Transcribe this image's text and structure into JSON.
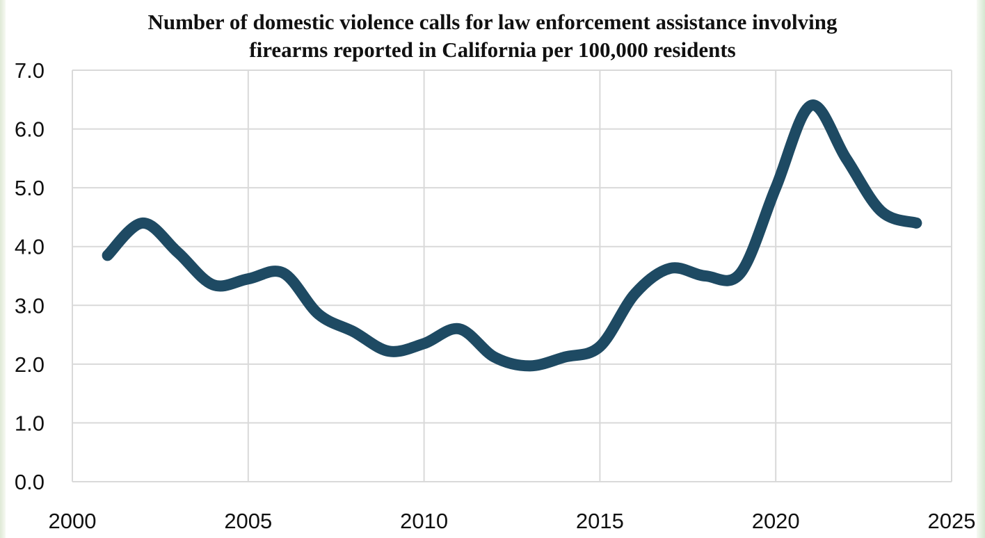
{
  "chart_data": {
    "type": "line",
    "title_lines": [
      "Number of domestic violence calls for law enforcement assistance involving",
      "firearms reported in California per 100,000 residents"
    ],
    "xlabel": "",
    "ylabel": "",
    "xlim": [
      2000,
      2025
    ],
    "ylim": [
      0,
      7
    ],
    "x_ticks": [
      2000,
      2005,
      2010,
      2015,
      2020,
      2025
    ],
    "x_tick_labels": [
      "2000",
      "2005",
      "2010",
      "2015",
      "2020",
      "2025"
    ],
    "y_ticks": [
      0,
      1,
      2,
      3,
      4,
      5,
      6,
      7
    ],
    "y_tick_labels": [
      "0.0",
      "1.0",
      "2.0",
      "3.0",
      "4.0",
      "5.0",
      "6.0",
      "7.0"
    ],
    "grid": "both",
    "legend": "none",
    "series": [
      {
        "color": "#1e4a63",
        "smooth": true,
        "points": [
          {
            "x": 2001,
            "y": 3.85
          },
          {
            "x": 2002,
            "y": 4.4
          },
          {
            "x": 2003,
            "y": 3.9
          },
          {
            "x": 2004,
            "y": 3.35
          },
          {
            "x": 2005,
            "y": 3.45
          },
          {
            "x": 2006,
            "y": 3.55
          },
          {
            "x": 2007,
            "y": 2.85
          },
          {
            "x": 2008,
            "y": 2.55
          },
          {
            "x": 2009,
            "y": 2.22
          },
          {
            "x": 2010,
            "y": 2.35
          },
          {
            "x": 2011,
            "y": 2.6
          },
          {
            "x": 2012,
            "y": 2.12
          },
          {
            "x": 2013,
            "y": 1.97
          },
          {
            "x": 2014,
            "y": 2.12
          },
          {
            "x": 2015,
            "y": 2.3
          },
          {
            "x": 2016,
            "y": 3.2
          },
          {
            "x": 2017,
            "y": 3.63
          },
          {
            "x": 2018,
            "y": 3.5
          },
          {
            "x": 2019,
            "y": 3.55
          },
          {
            "x": 2020,
            "y": 5.0
          },
          {
            "x": 2021,
            "y": 6.4
          },
          {
            "x": 2022,
            "y": 5.5
          },
          {
            "x": 2023,
            "y": 4.6
          },
          {
            "x": 2024,
            "y": 4.4
          }
        ]
      }
    ],
    "colors": {
      "gridline": "#d9d9d9",
      "axis": "#d9d9d9",
      "text": "#111111"
    }
  }
}
